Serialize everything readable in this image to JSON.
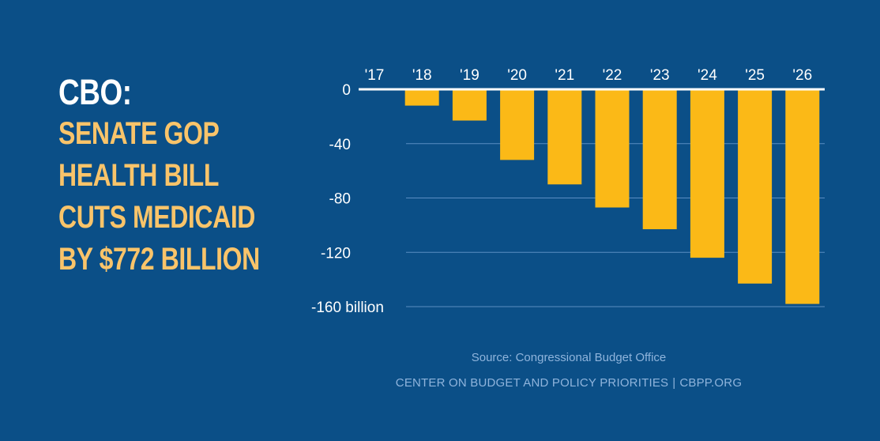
{
  "headline": {
    "lead": "CBO:",
    "lines": [
      "SENATE GOP",
      "HEALTH BILL",
      "CUTS MEDICAID",
      "BY $772 BILLION"
    ]
  },
  "footer": {
    "source": "Source: Congressional Budget Office",
    "org": "CENTER ON BUDGET AND POLICY PRIORITIES",
    "separator": "|",
    "site": "CBPP.ORG"
  },
  "colors": {
    "background": "#0b4f87",
    "bar": "#fbb917",
    "headline_accent": "#f9c46a",
    "text_muted": "#8fb4dc"
  },
  "chart_data": {
    "type": "bar",
    "title": "",
    "xlabel": "",
    "ylabel": "",
    "categories": [
      "'17",
      "'18",
      "'19",
      "'20",
      "'21",
      "'22",
      "'23",
      "'24",
      "'25",
      "'26"
    ],
    "values": [
      0,
      -12,
      -23,
      -52,
      -70,
      -87,
      -103,
      -124,
      -143,
      -158
    ],
    "ylim": [
      -160,
      0
    ],
    "yticks": [
      0,
      -40,
      -80,
      -120,
      -160
    ],
    "ytick_labels": [
      "0",
      "-40",
      "-80",
      "-120",
      "-160 billion"
    ],
    "grid": true,
    "x_axis_position": "top"
  }
}
